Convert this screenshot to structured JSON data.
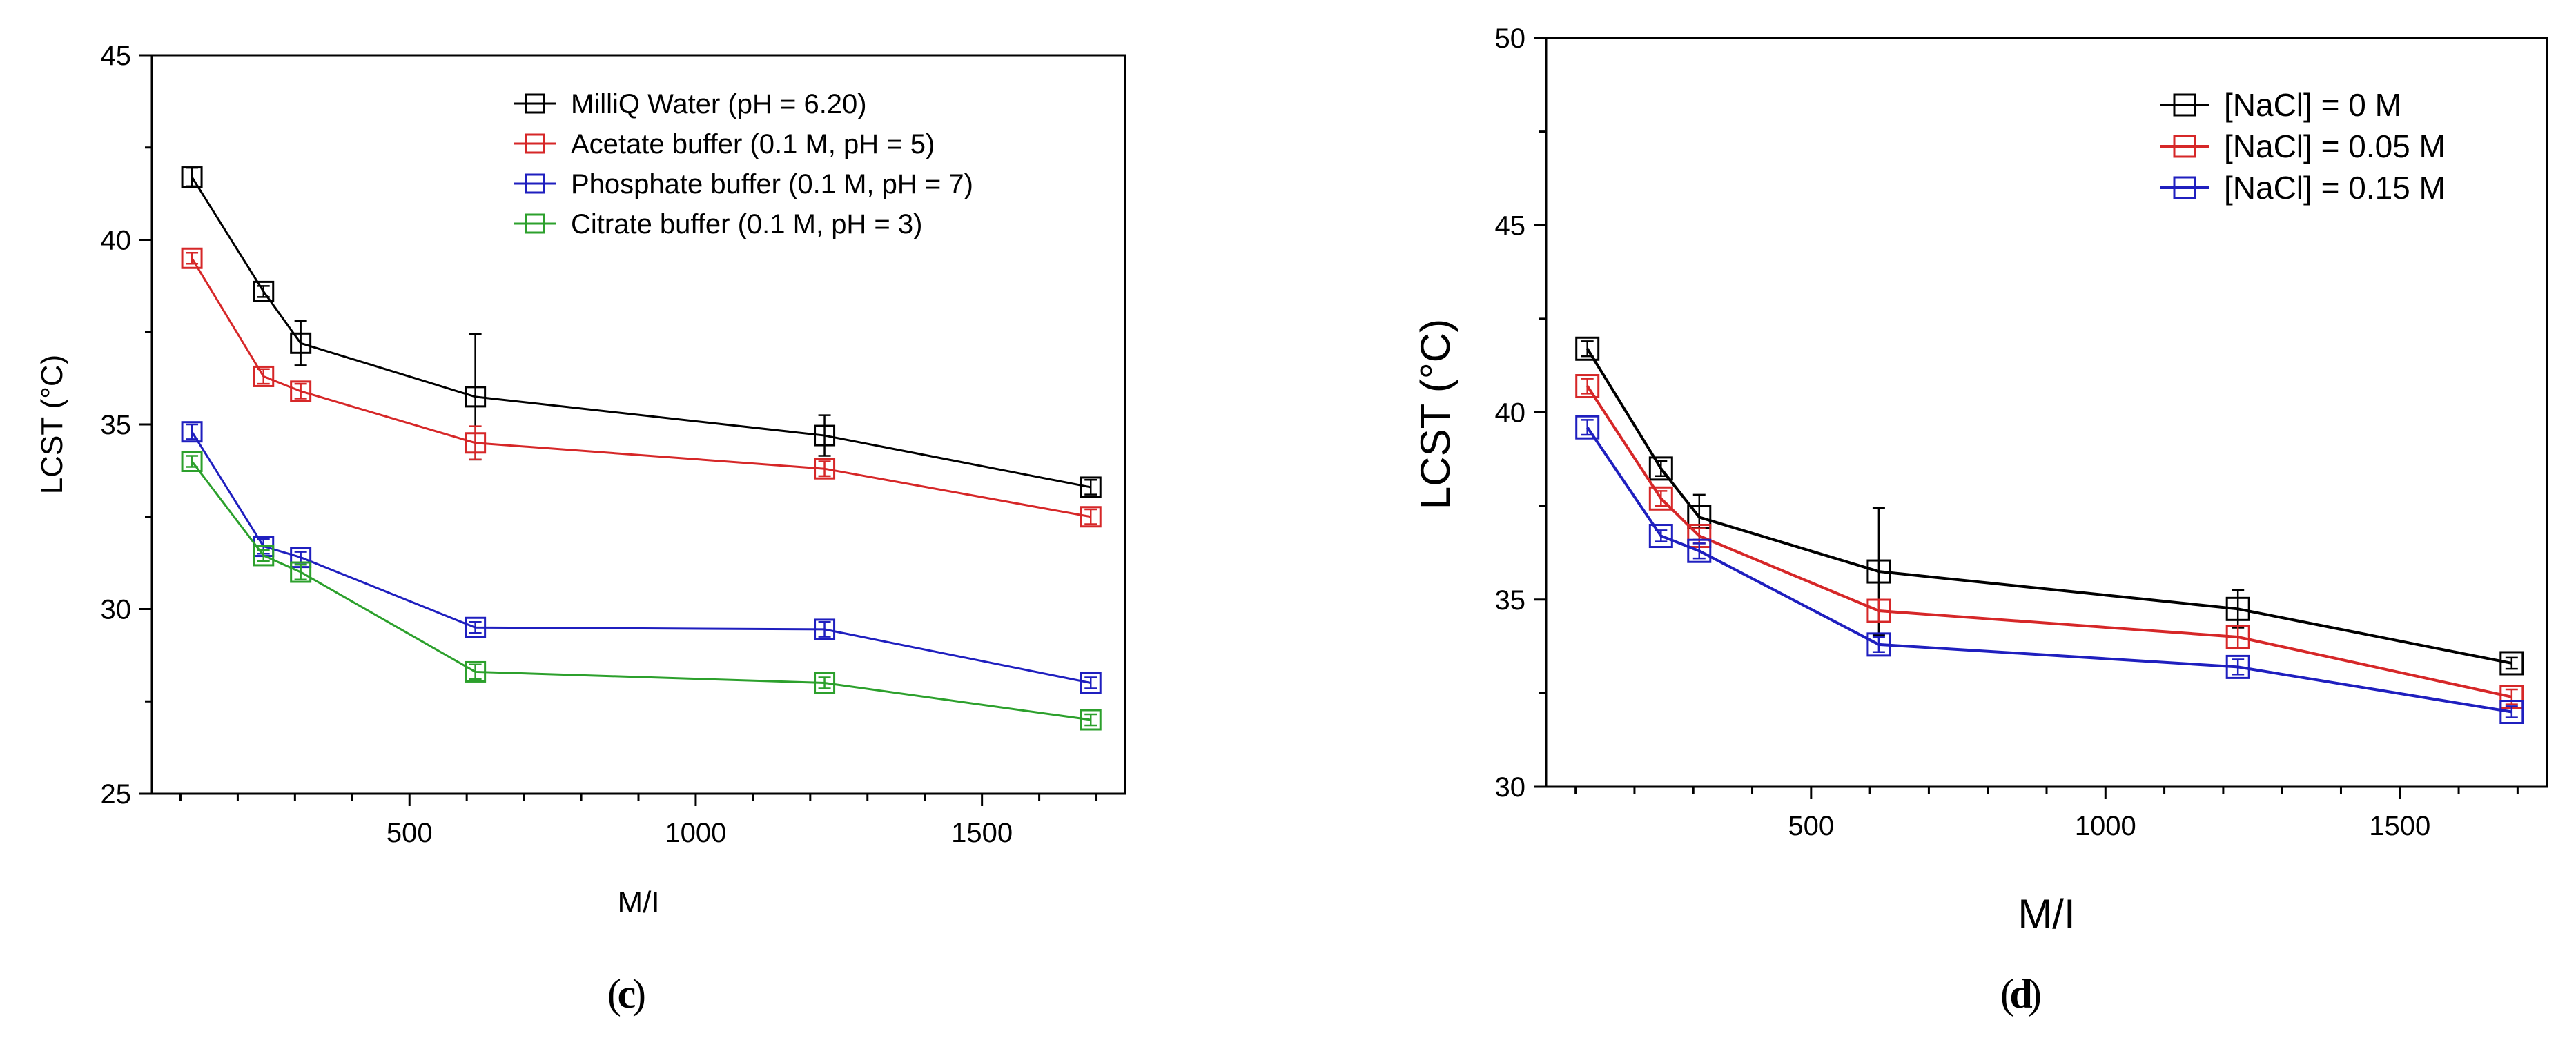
{
  "chart_data": [
    {
      "type": "line",
      "panel_label": "c",
      "xlabel": "M/I",
      "ylabel": "LCST (°C)",
      "xlim": [
        50,
        1750
      ],
      "ylim": [
        25,
        45
      ],
      "xticks": [
        500,
        1000,
        1500
      ],
      "yticks": [
        25,
        30,
        35,
        40,
        45
      ],
      "legend_position": "top-right",
      "series": [
        {
          "name": "MilliQ Water (pH = 6.20)",
          "color": "#000000",
          "x": [
            120,
            245,
            310,
            615,
            1225,
            1690
          ],
          "values": [
            41.7,
            38.6,
            37.2,
            35.75,
            34.7,
            33.3
          ],
          "errors": [
            0.25,
            0.15,
            0.6,
            1.7,
            0.55,
            0.2
          ]
        },
        {
          "name": "Acetate buffer (0.1 M, pH = 5)",
          "color": "#d62728",
          "x": [
            120,
            245,
            310,
            615,
            1225,
            1690
          ],
          "values": [
            39.5,
            36.3,
            35.9,
            34.5,
            33.8,
            32.5
          ],
          "errors": [
            0.15,
            0.2,
            0.2,
            0.45,
            0.2,
            0.2
          ]
        },
        {
          "name": "Phosphate buffer (0.1 M, pH = 7)",
          "color": "#1f1fbf",
          "x": [
            120,
            245,
            310,
            615,
            1225,
            1690
          ],
          "values": [
            34.8,
            31.7,
            31.4,
            29.5,
            29.45,
            28.0
          ],
          "errors": [
            0.2,
            0.2,
            0.15,
            0.15,
            0.2,
            0.15
          ]
        },
        {
          "name": "Citrate buffer (0.1 M, pH = 3)",
          "color": "#2ca02c",
          "x": [
            120,
            245,
            310,
            615,
            1225,
            1690
          ],
          "values": [
            34.0,
            31.45,
            31.0,
            28.3,
            28.0,
            27.0
          ],
          "errors": [
            0.15,
            0.15,
            0.2,
            0.2,
            0.15,
            0.15
          ]
        }
      ]
    },
    {
      "type": "line",
      "panel_label": "d",
      "xlabel": "M/I",
      "ylabel": "LCST (°C)",
      "xlim": [
        50,
        1750
      ],
      "ylim": [
        30,
        50
      ],
      "xticks": [
        500,
        1000,
        1500
      ],
      "yticks": [
        30,
        35,
        40,
        45,
        50
      ],
      "legend_position": "top-right",
      "series": [
        {
          "name": "[NaCl] = 0 M",
          "color": "#000000",
          "x": [
            120,
            245,
            310,
            615,
            1225,
            1690
          ],
          "values": [
            41.7,
            38.5,
            37.2,
            35.75,
            34.75,
            33.3
          ],
          "errors": [
            0.2,
            0.2,
            0.6,
            1.7,
            0.5,
            0.15
          ]
        },
        {
          "name": "[NaCl] = 0.05 M",
          "color": "#d62728",
          "x": [
            120,
            245,
            310,
            615,
            1225,
            1690
          ],
          "values": [
            40.7,
            37.7,
            36.7,
            34.7,
            34.0,
            32.4
          ],
          "errors": [
            0.2,
            0.2,
            0.2,
            0.3,
            0.3,
            0.2
          ]
        },
        {
          "name": "[NaCl] = 0.15 M",
          "color": "#1f1fbf",
          "x": [
            120,
            245,
            310,
            615,
            1225,
            1690
          ],
          "values": [
            39.6,
            36.7,
            36.3,
            33.8,
            33.2,
            32.0
          ],
          "errors": [
            0.2,
            0.15,
            0.2,
            0.2,
            0.2,
            0.15
          ]
        }
      ]
    }
  ]
}
